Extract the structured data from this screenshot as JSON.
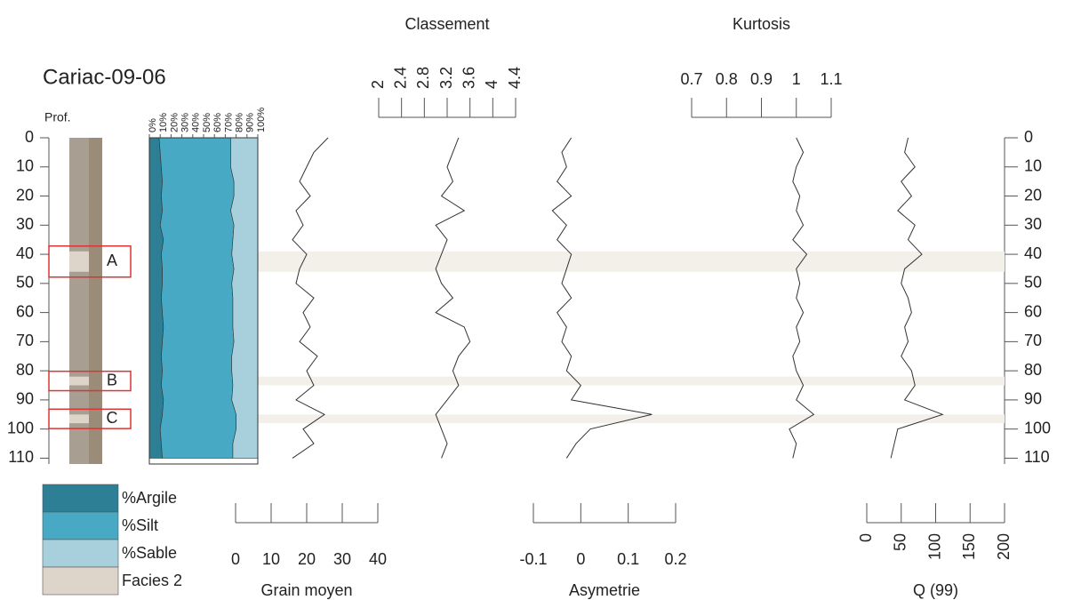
{
  "title": "Cariac-09-06",
  "depth_axis": {
    "label": "Prof.",
    "ylim": [
      0,
      112
    ],
    "yticks": [
      0,
      10,
      20,
      30,
      40,
      50,
      60,
      70,
      80,
      90,
      100,
      110
    ]
  },
  "depth": [
    0,
    5,
    10,
    15,
    20,
    25,
    30,
    35,
    40,
    45,
    50,
    55,
    60,
    65,
    70,
    75,
    80,
    85,
    90,
    95,
    100,
    105,
    110
  ],
  "zones": [
    {
      "label": "A",
      "depth": [
        39,
        46
      ]
    },
    {
      "label": "B",
      "depth": [
        82,
        85
      ]
    },
    {
      "label": "C",
      "depth": [
        95,
        98
      ]
    }
  ],
  "facies": {
    "name": "Facies 2",
    "color": "#ddd5c9"
  },
  "chart_data": [
    {
      "type": "stacked-area",
      "xlim": [
        0,
        100
      ],
      "xticks": [
        {
          "value": 0,
          "label": "0%"
        },
        {
          "value": 10,
          "label": "10%"
        },
        {
          "value": 20,
          "label": "20%"
        },
        {
          "value": 30,
          "label": "30%"
        },
        {
          "value": 40,
          "label": "40%"
        },
        {
          "value": 50,
          "label": "50%"
        },
        {
          "value": 60,
          "label": "60%"
        },
        {
          "value": 70,
          "label": "70%"
        },
        {
          "value": 80,
          "label": "80%"
        },
        {
          "value": 90,
          "label": "90%"
        },
        {
          "value": 100,
          "label": "100%"
        }
      ],
      "series": [
        {
          "name": "%Argile",
          "color": "#2d7f96",
          "values": [
            9,
            10,
            11,
            12,
            11,
            12,
            10,
            13,
            11,
            12,
            12,
            11,
            12,
            13,
            12,
            11,
            12,
            11,
            13,
            12,
            10,
            11,
            12
          ]
        },
        {
          "name": "%Silt",
          "color": "#47a9c4",
          "values": [
            66,
            65,
            64,
            66,
            67,
            63,
            68,
            64,
            65,
            66,
            64,
            66,
            65,
            64,
            66,
            65,
            64,
            66,
            63,
            68,
            70,
            66,
            65
          ]
        },
        {
          "name": "%Sable",
          "color": "#a8d0dc",
          "values": [
            25,
            25,
            25,
            22,
            22,
            25,
            22,
            23,
            24,
            22,
            24,
            23,
            23,
            23,
            22,
            24,
            24,
            23,
            24,
            20,
            20,
            23,
            23
          ]
        }
      ]
    },
    {
      "type": "line",
      "xlabel": "Grain moyen",
      "color": "#333333",
      "xlim": [
        0,
        40
      ],
      "xticks": [
        0,
        10,
        20,
        30,
        40
      ],
      "values": [
        26,
        22,
        20,
        18,
        21,
        17,
        19,
        16,
        20,
        18,
        17,
        22,
        19,
        21,
        18,
        23,
        20,
        22,
        17,
        25,
        19,
        22,
        16
      ]
    },
    {
      "type": "line",
      "xlabel": "Classement",
      "color": "#333333",
      "xlim": [
        2,
        4.4
      ],
      "xticks": [
        2,
        2.4,
        2.8,
        3.2,
        3.6,
        4,
        4.4
      ],
      "values": [
        3.4,
        3.3,
        3.2,
        3.3,
        3.1,
        3.5,
        3.0,
        3.2,
        3.1,
        3.0,
        3.1,
        3.3,
        3.0,
        3.5,
        3.6,
        3.4,
        3.3,
        3.4,
        3.2,
        3.0,
        3.1,
        3.2,
        3.1
      ]
    },
    {
      "type": "line",
      "xlabel": "Asymetrie",
      "color": "#333333",
      "xlim": [
        -0.1,
        0.2
      ],
      "xticks": [
        -0.1,
        0,
        0.1,
        0.2
      ],
      "values": [
        -0.02,
        -0.04,
        -0.03,
        -0.05,
        -0.02,
        -0.06,
        -0.03,
        -0.05,
        -0.02,
        -0.03,
        -0.04,
        -0.02,
        -0.05,
        -0.03,
        -0.04,
        -0.02,
        -0.03,
        0.0,
        -0.02,
        0.15,
        0.02,
        -0.01,
        -0.03
      ]
    },
    {
      "type": "line",
      "xlabel": "Kurtosis",
      "color": "#333333",
      "xlim": [
        0.7,
        1.1
      ],
      "xticks": [
        0.7,
        0.8,
        0.9,
        1,
        1.1
      ],
      "values": [
        1.0,
        1.02,
        1.0,
        0.99,
        1.01,
        1.0,
        1.02,
        0.99,
        1.03,
        1.0,
        1.01,
        1.0,
        1.02,
        1.0,
        1.01,
        0.99,
        1.0,
        1.02,
        1.0,
        1.05,
        0.98,
        1.0,
        0.99
      ]
    },
    {
      "type": "line",
      "xlabel": "Q (99)",
      "color": "#333333",
      "xlim": [
        0,
        200
      ],
      "xticks": [
        0,
        50,
        100,
        150,
        200
      ],
      "values": [
        60,
        55,
        70,
        50,
        65,
        45,
        70,
        60,
        80,
        55,
        50,
        60,
        65,
        55,
        60,
        50,
        65,
        70,
        55,
        110,
        45,
        40,
        35
      ]
    }
  ]
}
